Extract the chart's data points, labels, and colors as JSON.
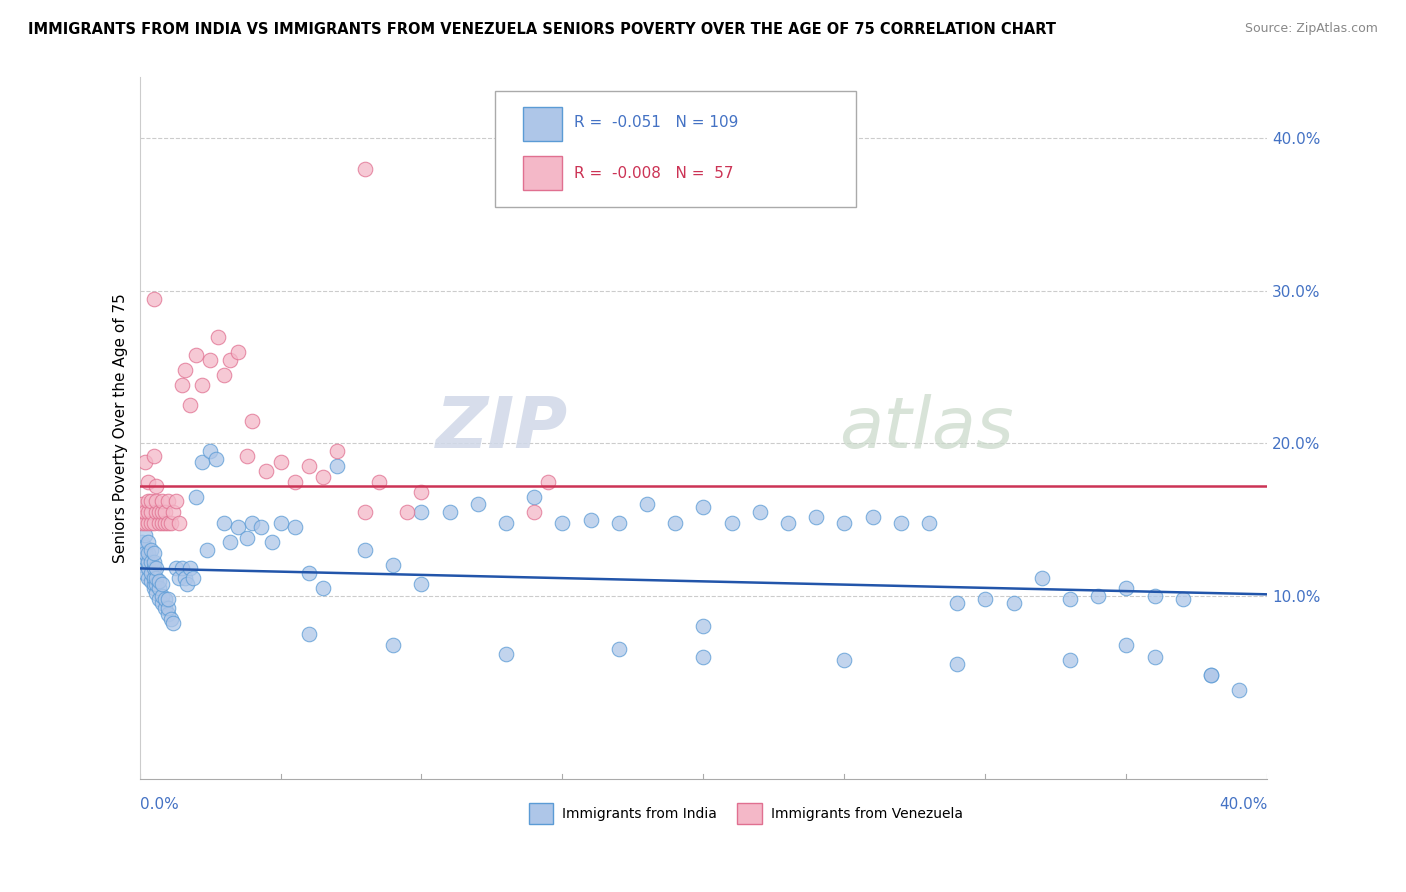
{
  "title": "IMMIGRANTS FROM INDIA VS IMMIGRANTS FROM VENEZUELA SENIORS POVERTY OVER THE AGE OF 75 CORRELATION CHART",
  "source": "Source: ZipAtlas.com",
  "ylabel": "Seniors Poverty Over the Age of 75",
  "ytick_values": [
    0.1,
    0.2,
    0.3,
    0.4
  ],
  "xlim": [
    0.0,
    0.4
  ],
  "ylim": [
    -0.02,
    0.44
  ],
  "india_color": "#aec6e8",
  "india_edge_color": "#5b9bd5",
  "venezuela_color": "#f4b8c8",
  "venezuela_edge_color": "#e07090",
  "india_R": "-0.051",
  "india_N": "109",
  "venezuela_R": "-0.008",
  "venezuela_N": "57",
  "india_trend_color": "#2255aa",
  "india_trend_start": 0.118,
  "india_trend_end": 0.101,
  "venezuela_trend_color": "#cc3355",
  "venezuela_trend_start": 0.172,
  "venezuela_trend_end": 0.172,
  "watermark_zip": "ZIP",
  "watermark_atlas": "atlas",
  "india_scatter_x": [
    0.001,
    0.001,
    0.001,
    0.002,
    0.002,
    0.002,
    0.002,
    0.002,
    0.003,
    0.003,
    0.003,
    0.003,
    0.003,
    0.004,
    0.004,
    0.004,
    0.004,
    0.005,
    0.005,
    0.005,
    0.005,
    0.005,
    0.005,
    0.006,
    0.006,
    0.006,
    0.006,
    0.007,
    0.007,
    0.007,
    0.008,
    0.008,
    0.008,
    0.009,
    0.009,
    0.01,
    0.01,
    0.01,
    0.011,
    0.012,
    0.013,
    0.014,
    0.015,
    0.016,
    0.017,
    0.018,
    0.019,
    0.02,
    0.022,
    0.024,
    0.025,
    0.027,
    0.03,
    0.032,
    0.035,
    0.038,
    0.04,
    0.043,
    0.047,
    0.05,
    0.055,
    0.06,
    0.065,
    0.07,
    0.08,
    0.09,
    0.1,
    0.11,
    0.12,
    0.13,
    0.14,
    0.15,
    0.16,
    0.17,
    0.18,
    0.19,
    0.2,
    0.21,
    0.22,
    0.23,
    0.24,
    0.25,
    0.26,
    0.27,
    0.28,
    0.29,
    0.3,
    0.31,
    0.32,
    0.33,
    0.34,
    0.35,
    0.36,
    0.37,
    0.06,
    0.09,
    0.13,
    0.17,
    0.2,
    0.25,
    0.29,
    0.33,
    0.36,
    0.38,
    0.1,
    0.2,
    0.35,
    0.38,
    0.39
  ],
  "india_scatter_y": [
    0.12,
    0.13,
    0.135,
    0.115,
    0.125,
    0.132,
    0.14,
    0.128,
    0.112,
    0.118,
    0.122,
    0.128,
    0.135,
    0.11,
    0.115,
    0.122,
    0.13,
    0.105,
    0.108,
    0.112,
    0.118,
    0.122,
    0.128,
    0.102,
    0.108,
    0.112,
    0.118,
    0.098,
    0.105,
    0.11,
    0.095,
    0.1,
    0.108,
    0.092,
    0.098,
    0.088,
    0.092,
    0.098,
    0.085,
    0.082,
    0.118,
    0.112,
    0.118,
    0.112,
    0.108,
    0.118,
    0.112,
    0.165,
    0.188,
    0.13,
    0.195,
    0.19,
    0.148,
    0.135,
    0.145,
    0.138,
    0.148,
    0.145,
    0.135,
    0.148,
    0.145,
    0.115,
    0.105,
    0.185,
    0.13,
    0.12,
    0.155,
    0.155,
    0.16,
    0.148,
    0.165,
    0.148,
    0.15,
    0.148,
    0.16,
    0.148,
    0.158,
    0.148,
    0.155,
    0.148,
    0.152,
    0.148,
    0.152,
    0.148,
    0.148,
    0.095,
    0.098,
    0.095,
    0.112,
    0.098,
    0.1,
    0.105,
    0.1,
    0.098,
    0.075,
    0.068,
    0.062,
    0.065,
    0.06,
    0.058,
    0.055,
    0.058,
    0.06,
    0.048,
    0.108,
    0.08,
    0.068,
    0.048,
    0.038
  ],
  "venezuela_scatter_x": [
    0.001,
    0.001,
    0.001,
    0.002,
    0.002,
    0.002,
    0.003,
    0.003,
    0.003,
    0.003,
    0.004,
    0.004,
    0.004,
    0.005,
    0.005,
    0.005,
    0.006,
    0.006,
    0.006,
    0.007,
    0.007,
    0.008,
    0.008,
    0.008,
    0.009,
    0.009,
    0.01,
    0.01,
    0.011,
    0.012,
    0.013,
    0.014,
    0.015,
    0.016,
    0.018,
    0.02,
    0.022,
    0.025,
    0.028,
    0.03,
    0.032,
    0.035,
    0.038,
    0.04,
    0.045,
    0.05,
    0.055,
    0.06,
    0.065,
    0.07,
    0.08,
    0.085,
    0.1,
    0.14,
    0.145,
    0.08,
    0.095
  ],
  "venezuela_scatter_y": [
    0.148,
    0.155,
    0.16,
    0.148,
    0.155,
    0.188,
    0.148,
    0.155,
    0.162,
    0.175,
    0.148,
    0.155,
    0.162,
    0.148,
    0.192,
    0.295,
    0.155,
    0.162,
    0.172,
    0.148,
    0.155,
    0.148,
    0.155,
    0.162,
    0.148,
    0.155,
    0.148,
    0.162,
    0.148,
    0.155,
    0.162,
    0.148,
    0.238,
    0.248,
    0.225,
    0.258,
    0.238,
    0.255,
    0.27,
    0.245,
    0.255,
    0.26,
    0.192,
    0.215,
    0.182,
    0.188,
    0.175,
    0.185,
    0.178,
    0.195,
    0.155,
    0.175,
    0.168,
    0.155,
    0.175,
    0.38,
    0.155
  ]
}
